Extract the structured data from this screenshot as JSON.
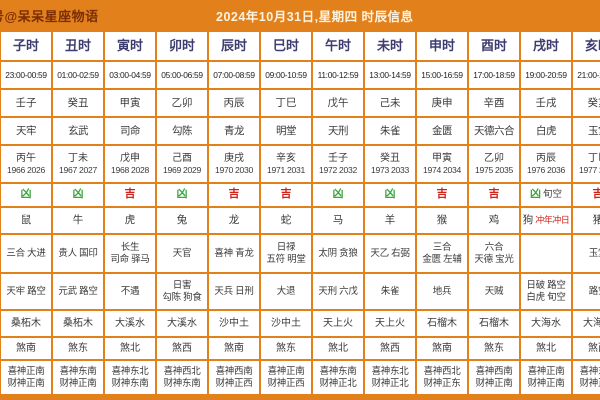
{
  "header": {
    "watermark": "号@呆呆星座物语",
    "title": "2024年10月31日,星期四 时辰信息"
  },
  "colors": {
    "background_orange": "#e2811c",
    "cell_white": "#ffffff",
    "hour_text": "#3d3d70",
    "auspicious_red": "#cf231a",
    "inauspicious_green": "#3aa83a",
    "watermark_maroon": "#7c2e05",
    "title_cream": "#fbf3e0"
  },
  "chart_data": {
    "type": "table",
    "title": "2024年10月31日,星期四 时辰信息",
    "row_semantics": [
      "时辰",
      "时间",
      "干支",
      "黄黑道",
      "冲煞年份",
      "吉凶",
      "生肖",
      "吉神",
      "凶神",
      "纳音",
      "煞方",
      "喜神财神方位"
    ],
    "columns": [
      {
        "hour": "子时",
        "time": "23:00-00:59",
        "ganzhi": "壬子",
        "deity": "天牢",
        "clash": "丙午",
        "years": "1966 2026",
        "luck": "凶",
        "luck_note": "",
        "zodiac": "鼠",
        "zodiac_note": "",
        "auspicious": "三合 大进",
        "inauspicious": "天牢 路空",
        "nayin": "桑柘木",
        "sha": "煞南",
        "xishen": "喜神正南",
        "caishen": "财神正南"
      },
      {
        "hour": "丑时",
        "time": "01:00-02:59",
        "ganzhi": "癸丑",
        "deity": "玄武",
        "clash": "丁未",
        "years": "1967 2027",
        "luck": "凶",
        "luck_note": "",
        "zodiac": "牛",
        "zodiac_note": "",
        "auspicious": "贵人 国印",
        "inauspicious": "元武 路空",
        "nayin": "桑柘木",
        "sha": "煞东",
        "xishen": "喜神东南",
        "caishen": "财神正南"
      },
      {
        "hour": "寅时",
        "time": "03:00-04:59",
        "ganzhi": "甲寅",
        "deity": "司命",
        "clash": "戊申",
        "years": "1968 2028",
        "luck": "吉",
        "luck_note": "",
        "zodiac": "虎",
        "zodiac_note": "",
        "auspicious": "长生\n司命 驿马",
        "inauspicious": "不遇",
        "nayin": "大溪水",
        "sha": "煞北",
        "xishen": "喜神东北",
        "caishen": "财神东南"
      },
      {
        "hour": "卯时",
        "time": "05:00-06:59",
        "ganzhi": "乙卯",
        "deity": "勾陈",
        "clash": "己酉",
        "years": "1969 2029",
        "luck": "凶",
        "luck_note": "",
        "zodiac": "兔",
        "zodiac_note": "",
        "auspicious": "天官",
        "inauspicious": "日害\n勾陈 狗食",
        "nayin": "大溪水",
        "sha": "煞西",
        "xishen": "喜神西北",
        "caishen": "财神东南"
      },
      {
        "hour": "辰时",
        "time": "07:00-08:59",
        "ganzhi": "丙辰",
        "deity": "青龙",
        "clash": "庚戌",
        "years": "1970 2030",
        "luck": "吉",
        "luck_note": "",
        "zodiac": "龙",
        "zodiac_note": "",
        "auspicious": "喜神 青龙",
        "inauspicious": "天兵 日刑",
        "nayin": "沙中土",
        "sha": "煞南",
        "xishen": "喜神西南",
        "caishen": "财神正西"
      },
      {
        "hour": "巳时",
        "time": "09:00-10:59",
        "ganzhi": "丁巳",
        "deity": "明堂",
        "clash": "辛亥",
        "years": "1971 2031",
        "luck": "吉",
        "luck_note": "",
        "zodiac": "蛇",
        "zodiac_note": "",
        "auspicious": "日禄\n五符 明堂",
        "inauspicious": "大退",
        "nayin": "沙中土",
        "sha": "煞东",
        "xishen": "喜神正南",
        "caishen": "财神正西"
      },
      {
        "hour": "午时",
        "time": "11:00-12:59",
        "ganzhi": "戊午",
        "deity": "天刑",
        "clash": "壬子",
        "years": "1972 2032",
        "luck": "凶",
        "luck_note": "",
        "zodiac": "马",
        "zodiac_note": "",
        "auspicious": "太阴 贪狼",
        "inauspicious": "天刑 六戊",
        "nayin": "天上火",
        "sha": "煞北",
        "xishen": "喜神东南",
        "caishen": "财神正北"
      },
      {
        "hour": "未时",
        "time": "13:00-14:59",
        "ganzhi": "己未",
        "deity": "朱雀",
        "clash": "癸丑",
        "years": "1973 2033",
        "luck": "凶",
        "luck_note": "",
        "zodiac": "羊",
        "zodiac_note": "",
        "auspicious": "天乙 右弼",
        "inauspicious": "朱雀",
        "nayin": "天上火",
        "sha": "煞西",
        "xishen": "喜神东北",
        "caishen": "财神正北"
      },
      {
        "hour": "申时",
        "time": "15:00-16:59",
        "ganzhi": "庚申",
        "deity": "金匮",
        "clash": "甲寅",
        "years": "1974 2034",
        "luck": "吉",
        "luck_note": "",
        "zodiac": "猴",
        "zodiac_note": "",
        "auspicious": "三合\n金匮 左辅",
        "inauspicious": "地兵",
        "nayin": "石榴木",
        "sha": "煞南",
        "xishen": "喜神西北",
        "caishen": "财神正东"
      },
      {
        "hour": "酉时",
        "time": "17:00-18:59",
        "ganzhi": "辛酉",
        "deity": "天德六合",
        "clash": "乙卯",
        "years": "1975 2035",
        "luck": "吉",
        "luck_note": "",
        "zodiac": "鸡",
        "zodiac_note": "",
        "auspicious": "六合\n天德 宝光",
        "inauspicious": "天贼",
        "nayin": "石榴木",
        "sha": "煞东",
        "xishen": "喜神西南",
        "caishen": "财神正南"
      },
      {
        "hour": "戌时",
        "time": "19:00-20:59",
        "ganzhi": "壬戌",
        "deity": "白虎",
        "clash": "丙辰",
        "years": "1976 2036",
        "luck": "凶",
        "luck_note": "旬空",
        "zodiac": "狗",
        "zodiac_note": "冲年冲日",
        "auspicious": "",
        "inauspicious": "日破 路空\n白虎 旬空",
        "nayin": "大海水",
        "sha": "煞北",
        "xishen": "喜神正南",
        "caishen": "财神正南"
      },
      {
        "hour": "亥时",
        "time": "21:00-22:59",
        "ganzhi": "癸亥",
        "deity": "玉堂",
        "clash": "丁巳",
        "years": "1977 2037",
        "luck": "吉",
        "luck_note": "",
        "zodiac": "猪",
        "zodiac_note": "",
        "auspicious": "玉堂",
        "inauspicious": "路空",
        "nayin": "大海水",
        "sha": "煞西",
        "xishen": "喜神东南",
        "caishen": "财神正南"
      }
    ]
  }
}
